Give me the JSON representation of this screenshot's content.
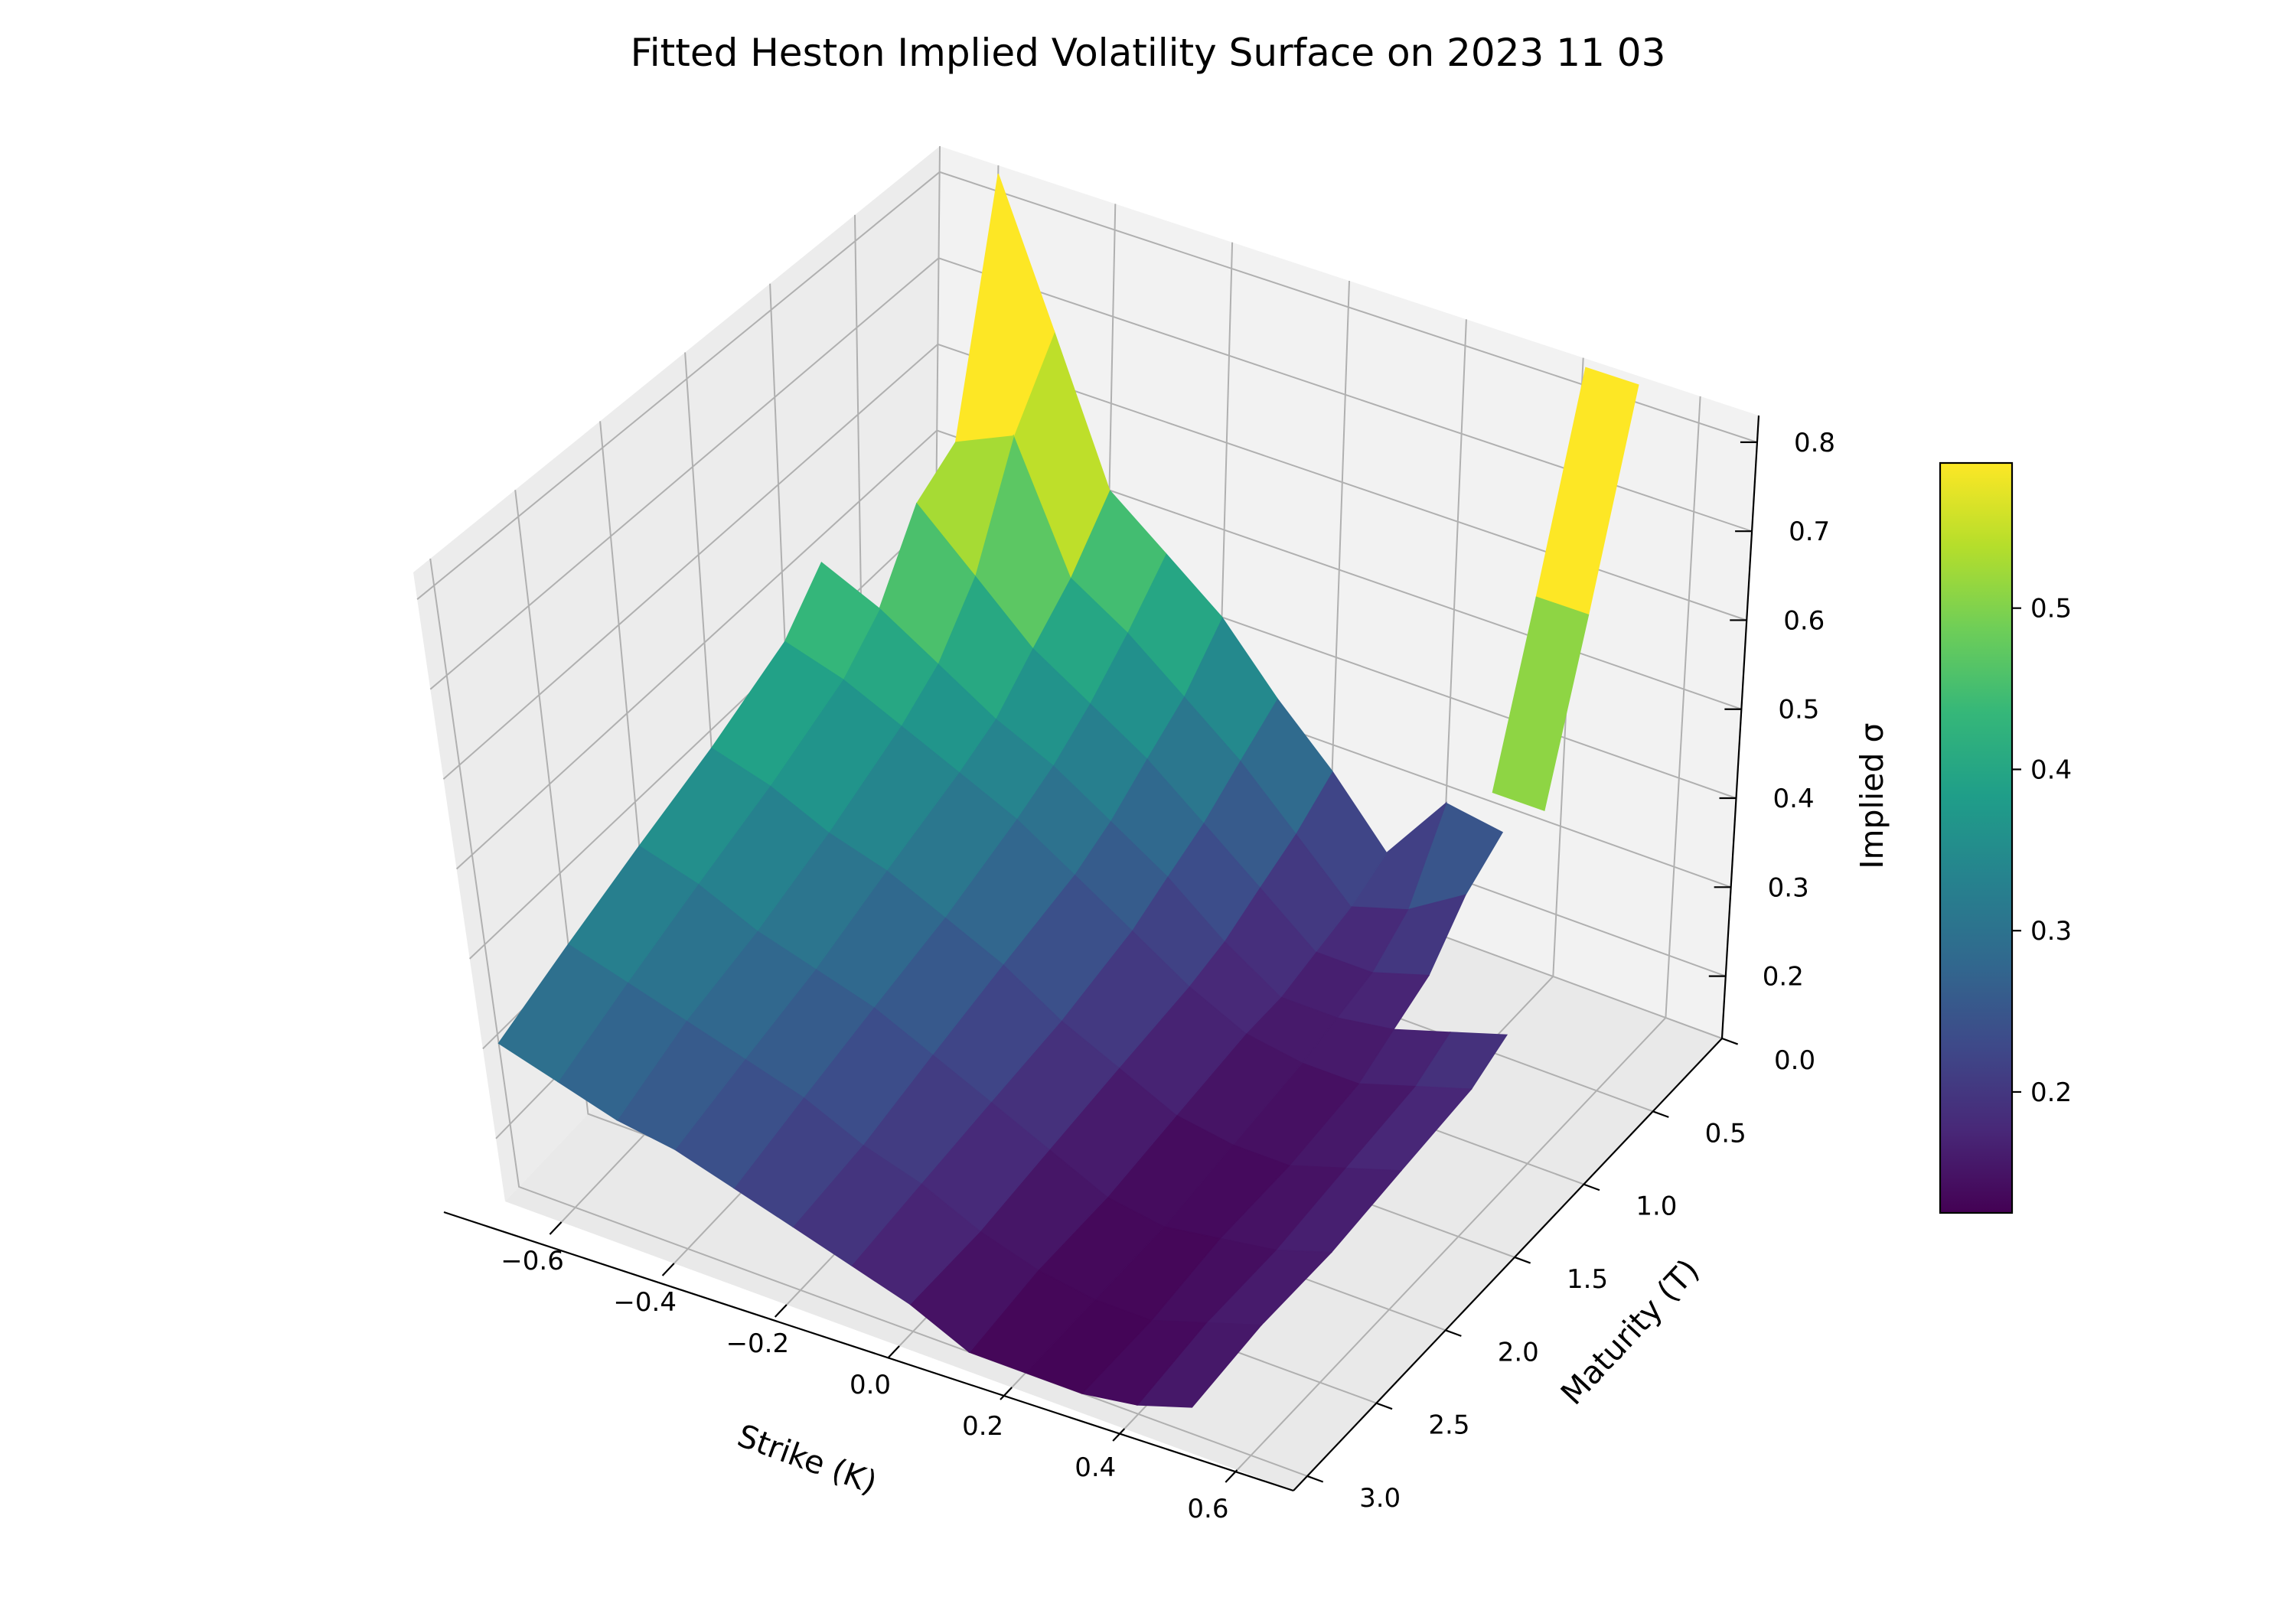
{
  "chart_data": {
    "type": "surface3d",
    "title": "Fitted Heston Implied Volatility Surface on 2023 11 03",
    "xlabel": "Strike (K)",
    "ylabel": "Maturity (T)",
    "zlabel": "Implied σ",
    "colormap": "viridis",
    "grid": true,
    "xlim": [
      -0.7,
      0.7
    ],
    "ylim": [
      0.0,
      3.1
    ],
    "zlim": [
      0.13,
      0.83
    ],
    "x_ticks": [
      "−0.6",
      "−0.4",
      "−0.2",
      "0.0",
      "0.2",
      "0.4",
      "0.6"
    ],
    "y_ticks": [
      "0.0",
      "0.5",
      "1.0",
      "1.5",
      "2.0",
      "2.5",
      "3.0"
    ],
    "z_ticks": [
      "0.2",
      "0.3",
      "0.4",
      "0.5",
      "0.6",
      "0.7",
      "0.8"
    ],
    "colorbar": {
      "range": [
        0.125,
        0.59
      ],
      "ticks": [
        "0.2",
        "0.3",
        "0.4",
        "0.5"
      ]
    },
    "strikes": [
      -0.7,
      -0.6,
      -0.5,
      -0.4,
      -0.3,
      -0.2,
      -0.1,
      0.0,
      0.1,
      0.2,
      0.3,
      0.4,
      0.5
    ],
    "maturities": [
      0.0,
      0.25,
      0.5,
      0.75,
      1.0,
      1.5,
      2.0,
      2.5,
      3.0
    ],
    "implied_vol": [
      [
        null,
        0.82,
        0.66,
        0.5,
        0.45,
        0.4,
        0.33,
        0.27,
        0.2,
        0.28,
        0.27,
        null,
        null
      ],
      [
        null,
        0.55,
        0.58,
        0.44,
        0.4,
        0.35,
        0.3,
        0.24,
        0.18,
        0.2,
        0.24,
        null,
        null
      ],
      [
        null,
        0.52,
        0.46,
        0.4,
        0.36,
        0.32,
        0.27,
        0.22,
        0.17,
        0.17,
        0.19,
        null,
        null
      ],
      [
        0.47,
        0.44,
        0.4,
        0.36,
        0.33,
        0.29,
        0.25,
        0.2,
        0.16,
        0.16,
        0.17,
        0.19,
        0.21
      ],
      [
        0.42,
        0.4,
        0.37,
        0.34,
        0.31,
        0.27,
        0.23,
        0.19,
        0.16,
        0.15,
        0.15,
        0.17,
        0.19
      ],
      [
        0.38,
        0.36,
        0.33,
        0.31,
        0.28,
        0.25,
        0.21,
        0.18,
        0.15,
        0.14,
        0.14,
        0.16,
        0.18
      ],
      [
        0.35,
        0.33,
        0.3,
        0.28,
        0.26,
        0.23,
        0.2,
        0.17,
        0.14,
        0.13,
        0.14,
        0.15,
        0.17
      ],
      [
        0.32,
        0.3,
        0.28,
        0.26,
        0.24,
        0.21,
        0.19,
        0.16,
        0.14,
        0.13,
        0.13,
        0.15,
        0.17
      ],
      [
        0.29,
        0.27,
        0.25,
        0.24,
        0.22,
        0.2,
        0.18,
        0.16,
        0.13,
        0.13,
        0.13,
        0.14,
        0.16
      ]
    ],
    "spike_points": [
      {
        "strike": 0.45,
        "maturity": 0.0,
        "implied_vol": 0.82
      },
      {
        "strike": 0.45,
        "maturity": 0.25,
        "implied_vol": 0.6
      },
      {
        "strike": 0.45,
        "maturity": 0.5,
        "implied_vol": 0.42
      }
    ]
  }
}
